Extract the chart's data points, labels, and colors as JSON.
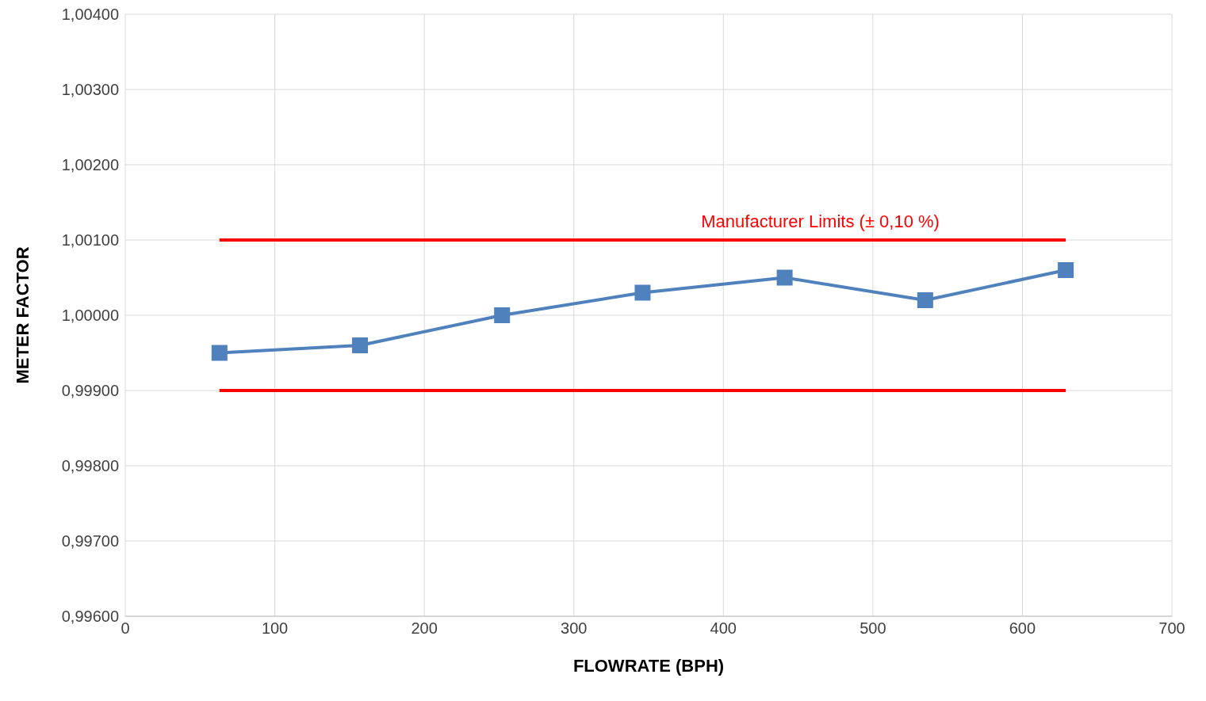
{
  "chart_data": {
    "type": "line",
    "xlabel": "FLOWRATE (BPH)",
    "ylabel": "METER FACTOR",
    "xlim": [
      0,
      700
    ],
    "xticks": [
      0,
      100,
      200,
      300,
      400,
      500,
      600,
      700
    ],
    "ylim": [
      0.996,
      1.004
    ],
    "yticks": [
      {
        "value": 0.996,
        "label": "0,99600"
      },
      {
        "value": 0.997,
        "label": "0,99700"
      },
      {
        "value": 0.998,
        "label": "0,99800"
      },
      {
        "value": 0.999,
        "label": "0,99900"
      },
      {
        "value": 1.0,
        "label": "1,00000"
      },
      {
        "value": 1.001,
        "label": "1,00100"
      },
      {
        "value": 1.002,
        "label": "1,00200"
      },
      {
        "value": 1.003,
        "label": "1,00300"
      },
      {
        "value": 1.004,
        "label": "1,00400"
      }
    ],
    "grid": true,
    "legend": false,
    "line_style": "solid",
    "series": [
      {
        "color": "#ff0000",
        "marker": "none",
        "x": [
          63,
          629
        ],
        "values": [
          1.001,
          1.001
        ]
      },
      {
        "color": "#ff0000",
        "marker": "none",
        "x": [
          63,
          629
        ],
        "values": [
          0.999,
          0.999
        ]
      },
      {
        "color": "#4f81bd",
        "marker": "square",
        "x": [
          63,
          157,
          252,
          346,
          441,
          535,
          629
        ],
        "values": [
          0.9995,
          0.9996,
          1.0,
          1.0003,
          1.0005,
          1.0002,
          1.0006
        ]
      }
    ],
    "annotations": [
      "Manufacturer Limits (± 0,10 %)"
    ]
  }
}
